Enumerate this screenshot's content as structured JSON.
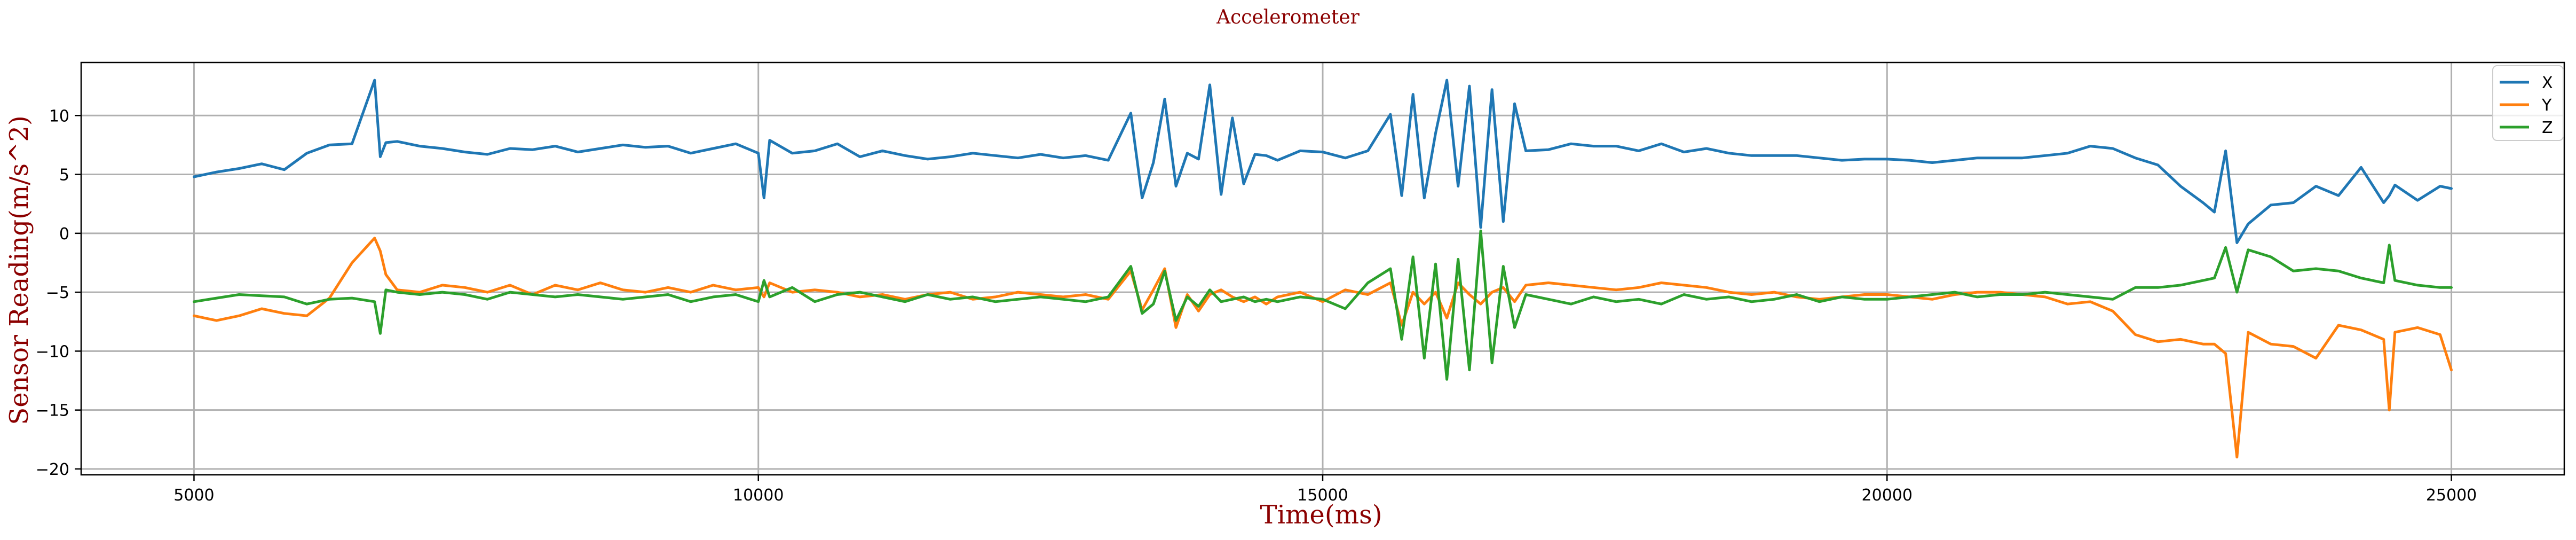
{
  "chart_data": {
    "type": "line",
    "title": "Accelerometer",
    "xlabel": "Time(ms)",
    "ylabel": "Sensor Reading(m/s^2)",
    "xlim": [
      4000,
      26000
    ],
    "ylim": [
      -20.5,
      14.5
    ],
    "xticks": [
      5000,
      10000,
      15000,
      20000,
      25000
    ],
    "yticks": [
      -20,
      -15,
      -10,
      -5,
      0,
      5,
      10
    ],
    "grid": true,
    "legend_position": "top-right",
    "x": [
      5000,
      5200,
      5400,
      5600,
      5800,
      6000,
      6200,
      6400,
      6600,
      6650,
      6700,
      6800,
      7000,
      7200,
      7400,
      7600,
      7800,
      8000,
      8200,
      8400,
      8600,
      8800,
      9000,
      9200,
      9400,
      9600,
      9800,
      10000,
      10050,
      10100,
      10300,
      10500,
      10700,
      10900,
      11100,
      11300,
      11500,
      11700,
      11900,
      12100,
      12300,
      12500,
      12700,
      12900,
      13100,
      13300,
      13400,
      13500,
      13600,
      13700,
      13800,
      13900,
      14000,
      14100,
      14200,
      14300,
      14400,
      14500,
      14600,
      14800,
      15000,
      15200,
      15400,
      15600,
      15700,
      15800,
      15900,
      16000,
      16100,
      16200,
      16300,
      16400,
      16500,
      16600,
      16700,
      16800,
      17000,
      17200,
      17400,
      17600,
      17800,
      18000,
      18200,
      18400,
      18600,
      18800,
      19000,
      19200,
      19400,
      19600,
      19800,
      20000,
      20200,
      20400,
      20600,
      20800,
      21000,
      21200,
      21400,
      21600,
      21800,
      22000,
      22200,
      22400,
      22600,
      22800,
      22900,
      23000,
      23100,
      23200,
      23400,
      23600,
      23800,
      24000,
      24200,
      24400,
      24450,
      24500,
      24700,
      24900,
      25000
    ],
    "series": [
      {
        "name": "X",
        "color": "#1f77b4",
        "values": [
          4.8,
          5.2,
          5.5,
          5.9,
          5.4,
          6.8,
          7.5,
          7.6,
          13.0,
          6.5,
          7.7,
          7.8,
          7.4,
          7.2,
          6.9,
          6.7,
          7.2,
          7.1,
          7.4,
          6.9,
          7.2,
          7.5,
          7.3,
          7.4,
          6.8,
          7.2,
          7.6,
          6.8,
          3.0,
          7.9,
          6.8,
          7.0,
          7.6,
          6.5,
          7.0,
          6.6,
          6.3,
          6.5,
          6.8,
          6.6,
          6.4,
          6.7,
          6.4,
          6.6,
          6.2,
          10.2,
          3.0,
          6.0,
          11.4,
          4.0,
          6.8,
          6.3,
          12.6,
          3.3,
          9.8,
          4.2,
          6.7,
          6.6,
          6.2,
          7.0,
          6.9,
          6.4,
          7.0,
          10.1,
          3.2,
          11.8,
          3.0,
          8.5,
          13.0,
          4.0,
          12.5,
          0.5,
          12.2,
          1.0,
          11.0,
          7.0,
          7.1,
          7.6,
          7.4,
          7.4,
          7.0,
          7.6,
          6.9,
          7.2,
          6.8,
          6.6,
          6.6,
          6.6,
          6.4,
          6.2,
          6.3,
          6.3,
          6.2,
          6.0,
          6.2,
          6.4,
          6.4,
          6.4,
          6.6,
          6.8,
          7.4,
          7.2,
          6.4,
          5.8,
          4.0,
          2.6,
          1.8,
          7.0,
          -0.8,
          0.8,
          2.4,
          2.6,
          4.0,
          3.2,
          5.6,
          2.6,
          3.2,
          4.1,
          2.8,
          4.0,
          3.8
        ]
      },
      {
        "name": "Y",
        "color": "#ff7f0e",
        "values": [
          -7.0,
          -7.4,
          -7.0,
          -6.4,
          -6.8,
          -7.0,
          -5.5,
          -2.5,
          -0.4,
          -1.5,
          -3.5,
          -4.8,
          -5.0,
          -4.4,
          -4.6,
          -5.0,
          -4.4,
          -5.2,
          -4.4,
          -4.8,
          -4.2,
          -4.8,
          -5.0,
          -4.6,
          -5.0,
          -4.4,
          -4.8,
          -4.6,
          -5.4,
          -4.2,
          -5.0,
          -4.8,
          -5.0,
          -5.4,
          -5.2,
          -5.6,
          -5.2,
          -5.0,
          -5.6,
          -5.4,
          -5.0,
          -5.2,
          -5.4,
          -5.2,
          -5.6,
          -3.2,
          -6.5,
          -4.8,
          -3.0,
          -8.0,
          -5.2,
          -6.6,
          -5.2,
          -4.8,
          -5.4,
          -5.8,
          -5.4,
          -6.0,
          -5.4,
          -5.0,
          -5.8,
          -4.8,
          -5.2,
          -4.2,
          -7.8,
          -5.0,
          -6.0,
          -5.0,
          -7.2,
          -4.2,
          -5.2,
          -6.0,
          -5.0,
          -4.6,
          -5.8,
          -4.4,
          -4.2,
          -4.4,
          -4.6,
          -4.8,
          -4.6,
          -4.2,
          -4.4,
          -4.6,
          -5.0,
          -5.2,
          -5.0,
          -5.4,
          -5.6,
          -5.4,
          -5.2,
          -5.2,
          -5.4,
          -5.6,
          -5.2,
          -5.0,
          -5.0,
          -5.2,
          -5.4,
          -6.0,
          -5.8,
          -6.6,
          -8.6,
          -9.2,
          -9.0,
          -9.4,
          -9.4,
          -10.2,
          -19.0,
          -8.4,
          -9.4,
          -9.6,
          -10.6,
          -7.8,
          -8.2,
          -9.0,
          -15.0,
          -8.4,
          -8.0,
          -8.6,
          -11.6
        ]
      },
      {
        "name": "Z",
        "color": "#2ca02c",
        "values": [
          -5.8,
          -5.5,
          -5.2,
          -5.3,
          -5.4,
          -6.0,
          -5.6,
          -5.5,
          -5.8,
          -8.5,
          -4.8,
          -5.0,
          -5.2,
          -5.0,
          -5.2,
          -5.6,
          -5.0,
          -5.2,
          -5.4,
          -5.2,
          -5.4,
          -5.6,
          -5.4,
          -5.2,
          -5.8,
          -5.4,
          -5.2,
          -5.8,
          -4.0,
          -5.4,
          -4.6,
          -5.8,
          -5.2,
          -5.0,
          -5.4,
          -5.8,
          -5.2,
          -5.6,
          -5.4,
          -5.8,
          -5.6,
          -5.4,
          -5.6,
          -5.8,
          -5.4,
          -2.8,
          -6.8,
          -6.0,
          -3.2,
          -7.4,
          -5.4,
          -6.2,
          -4.8,
          -5.8,
          -5.6,
          -5.4,
          -5.8,
          -5.6,
          -5.8,
          -5.4,
          -5.6,
          -6.4,
          -4.2,
          -3.0,
          -9.0,
          -2.0,
          -10.6,
          -2.6,
          -12.4,
          -2.2,
          -11.6,
          0.2,
          -11.0,
          -2.8,
          -8.0,
          -5.2,
          -5.6,
          -6.0,
          -5.4,
          -5.8,
          -5.6,
          -6.0,
          -5.2,
          -5.6,
          -5.4,
          -5.8,
          -5.6,
          -5.2,
          -5.8,
          -5.4,
          -5.6,
          -5.6,
          -5.4,
          -5.2,
          -5.0,
          -5.4,
          -5.2,
          -5.2,
          -5.0,
          -5.2,
          -5.4,
          -5.6,
          -4.6,
          -4.6,
          -4.4,
          -4.0,
          -3.8,
          -1.2,
          -5.0,
          -1.4,
          -2.0,
          -3.2,
          -3.0,
          -3.2,
          -3.8,
          -4.2,
          -1.0,
          -4.0,
          -4.4,
          -4.6,
          -4.6
        ]
      }
    ]
  }
}
